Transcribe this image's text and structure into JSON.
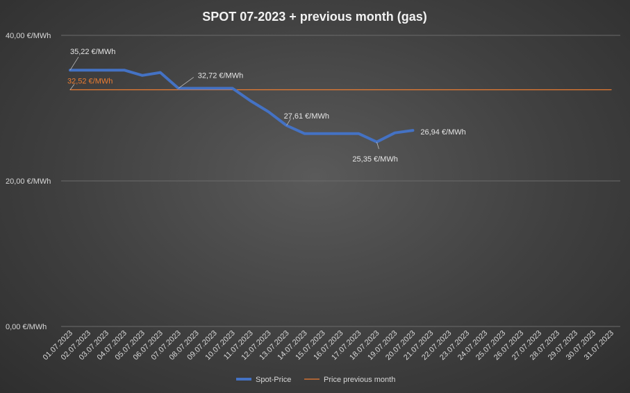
{
  "chart_data": {
    "type": "line",
    "title": "SPOT 07-2023 + previous month (gas)",
    "categories": [
      "01.07.2023",
      "02.07.2023",
      "03.07.2023",
      "04.07.2023",
      "05.07.2023",
      "06.07.2023",
      "07.07.2023",
      "08.07.2023",
      "09.07.2023",
      "10.07.2023",
      "11.07.2023",
      "12.07.2023",
      "13.07.2023",
      "14.07.2023",
      "15.07.2023",
      "16.07.2023",
      "17.07.2023",
      "18.07.2023",
      "19.07.2023",
      "20.07.2023",
      "21.07.2023",
      "22.07.2023",
      "23.07.2023",
      "24.07.2023",
      "25.07.2023",
      "26.07.2023",
      "27.07.2023",
      "28.07.2023",
      "29.07.2023",
      "30.07.2023",
      "31.07.2023"
    ],
    "ylim": [
      0,
      40
    ],
    "y_ticks": [
      "0,00 €/MWh",
      "20,00 €/MWh",
      "40,00 €/MWh"
    ],
    "y_tick_values": [
      0,
      20,
      40
    ],
    "grid": true,
    "legend_position": "bottom",
    "series": [
      {
        "name": "Spot-Price",
        "color": "#4472C4",
        "values": [
          35.22,
          35.22,
          35.22,
          35.22,
          34.5,
          34.9,
          32.72,
          32.72,
          32.72,
          32.72,
          31.0,
          29.5,
          27.61,
          26.5,
          26.5,
          26.5,
          26.5,
          25.35,
          26.6,
          26.94,
          null,
          null,
          null,
          null,
          null,
          null,
          null,
          null,
          null,
          null,
          null
        ]
      },
      {
        "name": "Price previous month",
        "color": "#ED7D31",
        "values": [
          32.52,
          32.52,
          32.52,
          32.52,
          32.52,
          32.52,
          32.52,
          32.52,
          32.52,
          32.52,
          32.52,
          32.52,
          32.52,
          32.52,
          32.52,
          32.52,
          32.52,
          32.52,
          32.52,
          32.52,
          32.52,
          32.52,
          32.52,
          32.52,
          32.52,
          32.52,
          32.52,
          32.52,
          32.52,
          32.52,
          32.52
        ]
      }
    ],
    "annotations": [
      {
        "series": 0,
        "index": 0,
        "text": "35,22 €/MWh"
      },
      {
        "series": 0,
        "index": 6,
        "text": "32,72 €/MWh"
      },
      {
        "series": 0,
        "index": 12,
        "text": "27,61 €/MWh"
      },
      {
        "series": 0,
        "index": 17,
        "text": "25,35 €/MWh"
      },
      {
        "series": 0,
        "index": 19,
        "text": "26,94 €/MWh"
      },
      {
        "series": 1,
        "index": 0,
        "text": "32,52 €/MWh"
      }
    ]
  }
}
